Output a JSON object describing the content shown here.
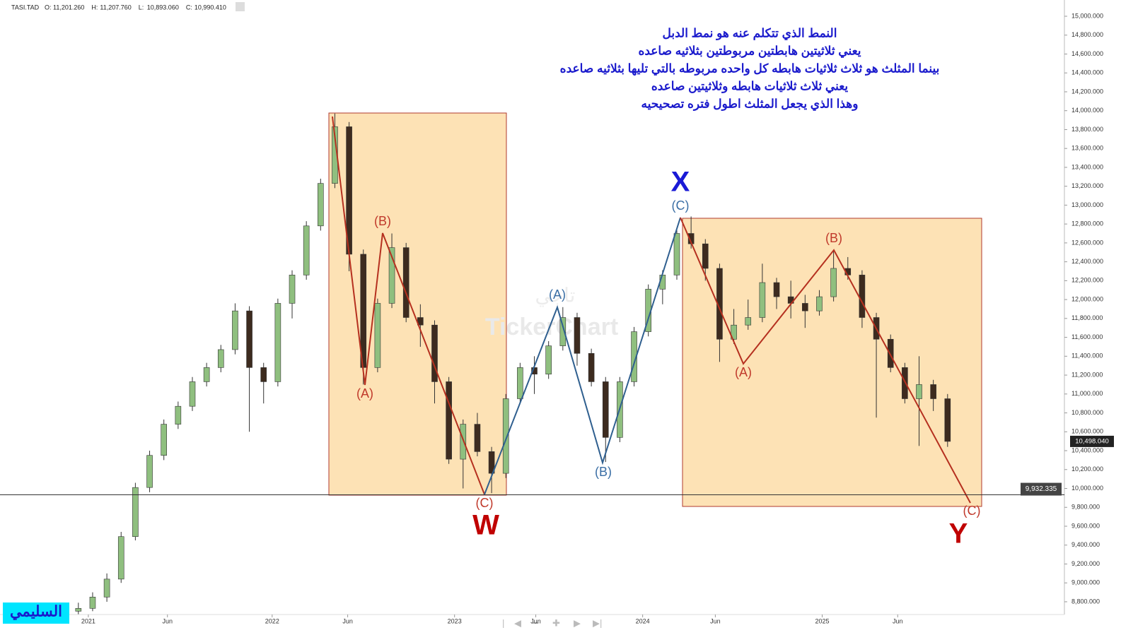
{
  "chart_data": {
    "type": "candlestick",
    "header": {
      "symbol": "TASI.TAD",
      "ohlc": [
        {
          "key": "O:",
          "value": "11,201.260"
        },
        {
          "key": "H:",
          "value": "11,207.760"
        },
        {
          "key": "L:",
          "value": "10,893.060"
        },
        {
          "key": "C:",
          "value": "10,990.410"
        }
      ]
    },
    "open": [
      8700,
      8730,
      8850,
      9040,
      9490,
      10010,
      10350,
      10680,
      10870,
      11130,
      11280,
      11470,
      11880,
      11280,
      11130,
      11960,
      12260,
      12780,
      13230,
      13830,
      12480,
      11280,
      11960,
      12550,
      11810,
      11730,
      11130,
      10310,
      10680,
      10390,
      10160,
      10950,
      11280,
      11210,
      11510,
      11810,
      11430,
      11130,
      10540,
      11130,
      11660,
      12110,
      12260,
      12700,
      12590,
      12330,
      11580,
      11730,
      11810,
      12180,
      12030,
      11960,
      11880,
      12030,
      12330,
      12260,
      11810,
      11580,
      11280,
      10950,
      11100,
      10950
    ],
    "high": [
      8790,
      8900,
      9100,
      9540,
      10060,
      10400,
      10730,
      10920,
      11180,
      11330,
      11520,
      11960,
      11930,
      11330,
      12010,
      12310,
      12830,
      13280,
      13970,
      13880,
      12530,
      12010,
      12700,
      12600,
      11950,
      11780,
      11180,
      10730,
      10800,
      10440,
      11000,
      11330,
      11400,
      11560,
      11920,
      11860,
      11480,
      11180,
      11180,
      11710,
      12160,
      12310,
      12750,
      12880,
      12640,
      12380,
      11900,
      12000,
      12380,
      12230,
      12200,
      12050,
      12100,
      12520,
      12450,
      12310,
      11860,
      11630,
      11330,
      11400,
      11150,
      11000
    ],
    "low": [
      8660,
      8700,
      8800,
      9000,
      9450,
      9960,
      10300,
      10630,
      10820,
      11080,
      11230,
      11420,
      10600,
      10900,
      11080,
      11800,
      12210,
      12730,
      13180,
      12300,
      11100,
      11230,
      11910,
      11760,
      11500,
      10900,
      10260,
      10000,
      10340,
      9950,
      10110,
      10900,
      11000,
      11160,
      11460,
      11300,
      11080,
      10280,
      10490,
      11080,
      11610,
      11950,
      12210,
      12540,
      12200,
      11340,
      11530,
      11680,
      11760,
      11900,
      11800,
      11700,
      11830,
      11980,
      12210,
      11700,
      10750,
      11230,
      10900,
      10450,
      10820,
      10440
    ],
    "close": [
      8730,
      8850,
      9040,
      9490,
      10010,
      10350,
      10680,
      10870,
      11130,
      11280,
      11470,
      11880,
      11280,
      11130,
      11960,
      12260,
      12780,
      13230,
      13830,
      12480,
      11280,
      11960,
      12550,
      11810,
      11730,
      11130,
      10310,
      10680,
      10390,
      10160,
      10950,
      11280,
      11210,
      11510,
      11810,
      11430,
      11130,
      10540,
      11130,
      11660,
      12110,
      12260,
      12700,
      12590,
      12330,
      11580,
      11730,
      11810,
      12180,
      12030,
      11960,
      11880,
      12030,
      12330,
      12260,
      11810,
      11580,
      11280,
      10950,
      11100,
      10950,
      10498
    ],
    "up_color": "#8fbf7f",
    "down_color": "#3d2b1f",
    "xlim": [
      -5.5,
      69.2
    ],
    "xticks": [
      {
        "value": 0.7,
        "label": "2021"
      },
      {
        "value": 6.25,
        "label": "Jun"
      },
      {
        "value": 13.6,
        "label": "2022"
      },
      {
        "value": 18.9,
        "label": "Jun"
      },
      {
        "value": 26.4,
        "label": "2023"
      },
      {
        "value": 32.1,
        "label": "Jun"
      },
      {
        "value": 39.6,
        "label": "2024"
      },
      {
        "value": 44.7,
        "label": "Jun"
      },
      {
        "value": 52.2,
        "label": "2025"
      },
      {
        "value": 57.5,
        "label": "Jun"
      }
    ],
    "ylim": [
      8665,
      15172
    ],
    "yticks": [
      {
        "value": 8800,
        "label": "8,800.000"
      },
      {
        "value": 9000,
        "label": "9,000.000"
      },
      {
        "value": 9200,
        "label": "9,200.000"
      },
      {
        "value": 9400,
        "label": "9,400.000"
      },
      {
        "value": 9600,
        "label": "9,600.000"
      },
      {
        "value": 9800,
        "label": "9,800.000"
      },
      {
        "value": 10000,
        "label": "10,000.000"
      },
      {
        "value": 10200,
        "label": "10,200.000"
      },
      {
        "value": 10400,
        "label": "10,400.000"
      },
      {
        "value": 10600,
        "label": "10,600.000"
      },
      {
        "value": 10800,
        "label": "10,800.000"
      },
      {
        "value": 11000,
        "label": "11,000.000"
      },
      {
        "value": 11200,
        "label": "11,200.000"
      },
      {
        "value": 11400,
        "label": "11,400.000"
      },
      {
        "value": 11600,
        "label": "11,600.000"
      },
      {
        "value": 11800,
        "label": "11,800.000"
      },
      {
        "value": 12000,
        "label": "12,000.000"
      },
      {
        "value": 12200,
        "label": "12,200.000"
      },
      {
        "value": 12400,
        "label": "12,400.000"
      },
      {
        "value": 12600,
        "label": "12,600.000"
      },
      {
        "value": 12800,
        "label": "12,800.000"
      },
      {
        "value": 13000,
        "label": "13,000.000"
      },
      {
        "value": 13200,
        "label": "13,200.000"
      },
      {
        "value": 13400,
        "label": "13,400.000"
      },
      {
        "value": 13600,
        "label": "13,600.000"
      },
      {
        "value": 13800,
        "label": "13,800.000"
      },
      {
        "value": 14000,
        "label": "14,000.000"
      },
      {
        "value": 14200,
        "label": "14,200.000"
      },
      {
        "value": 14400,
        "label": "14,400.000"
      },
      {
        "value": 14600,
        "label": "14,600.000"
      },
      {
        "value": 14800,
        "label": "14,800.000"
      },
      {
        "value": 15000,
        "label": "15,000.000"
      }
    ],
    "hline": {
      "value": 9932.335,
      "label": "9,932.335"
    },
    "last_price": {
      "value": 10498.04,
      "label": "10,498.040"
    },
    "note_lines": [
      "النمط الذي تتكلم عنه هو نمط الدبل",
      "يعني ثلاثيتين هابطتين مربوطتين بثلاثيه صاعده",
      "بينما المثلث هو ثلاث ثلاثيات هابطه كل واحده مربوطه بالتي تليها بثلاثيه صاعده",
      "يعني ثلاث ثلاثيات هابطه وثلاثيتين صاعده",
      "وهذا الذي يجعل المثلث اطول فتره تصحيحيه"
    ],
    "wave_w": [
      "(A)",
      "(B)",
      "(C)",
      "W"
    ],
    "wave_x": [
      "(A)",
      "(B)",
      "(C)",
      "X"
    ],
    "wave_y": [
      "(A)",
      "(B)",
      "(C)",
      "Y"
    ],
    "watermark": "TickerChart",
    "watermark_ar": "تاجي",
    "logo": "السليمي"
  }
}
